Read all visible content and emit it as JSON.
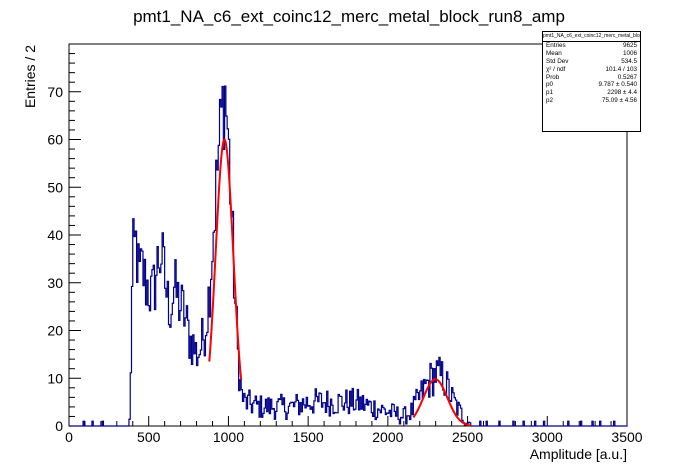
{
  "chart_data": {
    "type": "histogram",
    "title": "pmt1_NA_c6_ext_coinc12_merc_metal_block_run8_amp",
    "xlabel": "Amplitude [a.u.]",
    "ylabel": "Entries / 2",
    "xlim": [
      0,
      3500
    ],
    "ylim": [
      0,
      80
    ],
    "xticks": [
      0,
      500,
      1000,
      1500,
      2000,
      2500,
      3000,
      3500
    ],
    "yticks": [
      0,
      10,
      20,
      30,
      40,
      50,
      60,
      70
    ],
    "xtick_labels": [
      "0",
      "500",
      "1000",
      "1500",
      "2000",
      "2500",
      "3000",
      "3500"
    ],
    "ytick_labels": [
      "0",
      "10",
      "20",
      "30",
      "40",
      "50",
      "60",
      "70"
    ],
    "line_color": "#00008b",
    "fit_color": "#ff0000",
    "histogram_envelope": [
      [
        0,
        0
      ],
      [
        370,
        0
      ],
      [
        380,
        1
      ],
      [
        390,
        16
      ],
      [
        400,
        35
      ],
      [
        420,
        38
      ],
      [
        440,
        31
      ],
      [
        460,
        33
      ],
      [
        480,
        30
      ],
      [
        500,
        29
      ],
      [
        520,
        27
      ],
      [
        540,
        30
      ],
      [
        560,
        35
      ],
      [
        580,
        36
      ],
      [
        600,
        31
      ],
      [
        620,
        26
      ],
      [
        640,
        25
      ],
      [
        660,
        29
      ],
      [
        680,
        27
      ],
      [
        700,
        25
      ],
      [
        720,
        24
      ],
      [
        740,
        21
      ],
      [
        760,
        18
      ],
      [
        780,
        17
      ],
      [
        800,
        15
      ],
      [
        820,
        16
      ],
      [
        840,
        18
      ],
      [
        860,
        22
      ],
      [
        880,
        28
      ],
      [
        900,
        38
      ],
      [
        920,
        48
      ],
      [
        940,
        58
      ],
      [
        960,
        66
      ],
      [
        980,
        70
      ],
      [
        1000,
        60
      ],
      [
        1020,
        44
      ],
      [
        1040,
        28
      ],
      [
        1060,
        15
      ],
      [
        1080,
        7
      ],
      [
        1100,
        5
      ],
      [
        1200,
        4
      ],
      [
        1300,
        4
      ],
      [
        1400,
        4
      ],
      [
        1500,
        5
      ],
      [
        1600,
        5
      ],
      [
        1700,
        5
      ],
      [
        1800,
        5
      ],
      [
        1900,
        4
      ],
      [
        2000,
        3
      ],
      [
        2100,
        2
      ],
      [
        2150,
        3
      ],
      [
        2200,
        6
      ],
      [
        2250,
        9
      ],
      [
        2300,
        11
      ],
      [
        2350,
        10
      ],
      [
        2400,
        6
      ],
      [
        2450,
        3
      ],
      [
        2500,
        1
      ],
      [
        2550,
        0
      ],
      [
        3500,
        0
      ]
    ],
    "sparse_entries": [
      [
        90,
        1
      ],
      [
        150,
        1
      ],
      [
        210,
        1
      ],
      [
        2580,
        1
      ],
      [
        2620,
        1
      ],
      [
        2700,
        1
      ],
      [
        2790,
        1
      ],
      [
        2850,
        1
      ],
      [
        2920,
        1
      ],
      [
        2980,
        1
      ],
      [
        3130,
        1
      ],
      [
        3210,
        1
      ],
      [
        3280,
        1
      ],
      [
        3330,
        1
      ],
      [
        3420,
        1
      ]
    ],
    "fits": [
      {
        "type": "gaussian",
        "amplitude": 60,
        "mean": 975,
        "sigma": 55,
        "xrange": [
          880,
          1080
        ]
      },
      {
        "type": "gaussian",
        "amplitude": 9.787,
        "mean": 2298,
        "sigma": 75.09,
        "xrange": [
          2160,
          2520
        ]
      }
    ],
    "stats_box": {
      "title": "pmt1_NA_c6_ext_coinc12_merc_metal_block_run8_amp",
      "rows": [
        {
          "label": "Entries",
          "value": "9625"
        },
        {
          "label": "Mean",
          "value": "1006"
        },
        {
          "label": "Std Dev",
          "value": "534.5"
        },
        {
          "label": "χ² / ndf",
          "value": "101.4 / 103"
        },
        {
          "label": "Prob",
          "value": "0.5267"
        },
        {
          "label": "p0",
          "value": "9.787 ± 0.540"
        },
        {
          "label": "p1",
          "value": "2298 ± 4.4"
        },
        {
          "label": "p2",
          "value": "75.09 ± 4.56"
        }
      ]
    }
  }
}
